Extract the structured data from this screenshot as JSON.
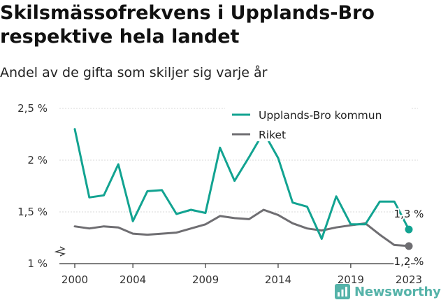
{
  "title": "Skilsmässofrekvens i Upplands-Bro respektive hela landet",
  "subtitle": "Andel av de gifta som skiljer sig varje år",
  "brand": "Newsworthy",
  "colors": {
    "series1": "#12a391",
    "series2": "#6f6e72",
    "grid": "#d9d9d9",
    "axis": "#333333"
  },
  "chart_data": {
    "type": "line",
    "title": "Skilsmässofrekvens i Upplands-Bro respektive hela landet",
    "subtitle": "Andel av de gifta som skiljer sig varje år",
    "x": [
      2000,
      2001,
      2002,
      2003,
      2004,
      2005,
      2006,
      2007,
      2008,
      2009,
      2010,
      2011,
      2012,
      2013,
      2014,
      2015,
      2016,
      2017,
      2018,
      2019,
      2020,
      2021,
      2022,
      2023
    ],
    "x_ticks": [
      2000,
      2004,
      2009,
      2014,
      2019,
      2023
    ],
    "x_tick_labels": [
      "2000",
      "2004",
      "2009",
      "2014",
      "2019",
      "2023"
    ],
    "y_ticks": [
      1.0,
      1.5,
      2.0,
      2.5
    ],
    "y_tick_labels": [
      "1 %",
      "1,5 %",
      "2 %",
      "2,5 %"
    ],
    "ylim": [
      1.0,
      2.55
    ],
    "grid": true,
    "legend_position": "top-right",
    "series": [
      {
        "name": "Upplands-Bro kommun",
        "values": [
          2.3,
          1.64,
          1.66,
          1.96,
          1.41,
          1.7,
          1.71,
          1.48,
          1.52,
          1.49,
          2.12,
          1.8,
          2.03,
          2.27,
          2.02,
          1.59,
          1.55,
          1.24,
          1.65,
          1.38,
          1.38,
          1.6,
          1.6,
          1.33
        ],
        "end_label": "1,3 %"
      },
      {
        "name": "Riket",
        "values": [
          1.36,
          1.34,
          1.36,
          1.35,
          1.29,
          1.28,
          1.29,
          1.3,
          1.34,
          1.38,
          1.46,
          1.44,
          1.43,
          1.52,
          1.47,
          1.39,
          1.34,
          1.32,
          1.35,
          1.37,
          1.39,
          1.28,
          1.18,
          1.17
        ],
        "end_label": "1,2 %"
      }
    ]
  }
}
